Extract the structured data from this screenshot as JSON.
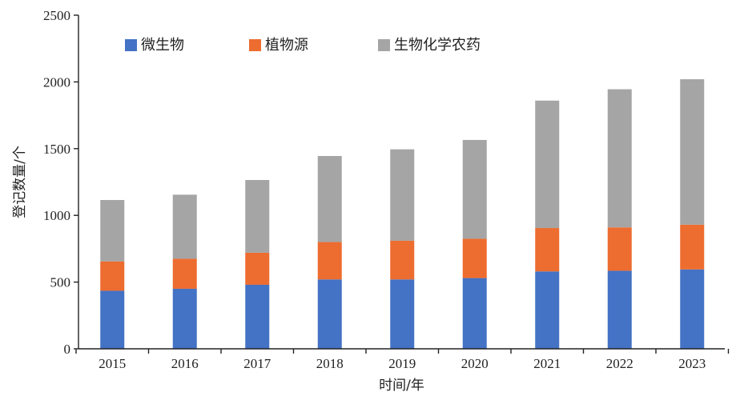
{
  "chart_data": {
    "type": "bar",
    "stacked": true,
    "categories": [
      "2015",
      "2016",
      "2017",
      "2018",
      "2019",
      "2020",
      "2021",
      "2022",
      "2023"
    ],
    "series": [
      {
        "name": "微生物",
        "color": "#4472C4",
        "values": [
          435,
          450,
          480,
          520,
          520,
          530,
          580,
          585,
          595
        ]
      },
      {
        "name": "植物源",
        "color": "#ED6C2F",
        "values": [
          220,
          225,
          240,
          280,
          290,
          295,
          325,
          325,
          335
        ]
      },
      {
        "name": "生物化学农药",
        "color": "#A5A5A5",
        "values": [
          460,
          480,
          545,
          645,
          685,
          740,
          955,
          1035,
          1090
        ]
      }
    ],
    "xlabel": "时间/年",
    "ylabel": "登记数量/个",
    "ylim": [
      0,
      2500
    ],
    "yticks": [
      0,
      500,
      1000,
      1500,
      2000,
      2500
    ],
    "grid": false,
    "legend_position": "top-left"
  }
}
